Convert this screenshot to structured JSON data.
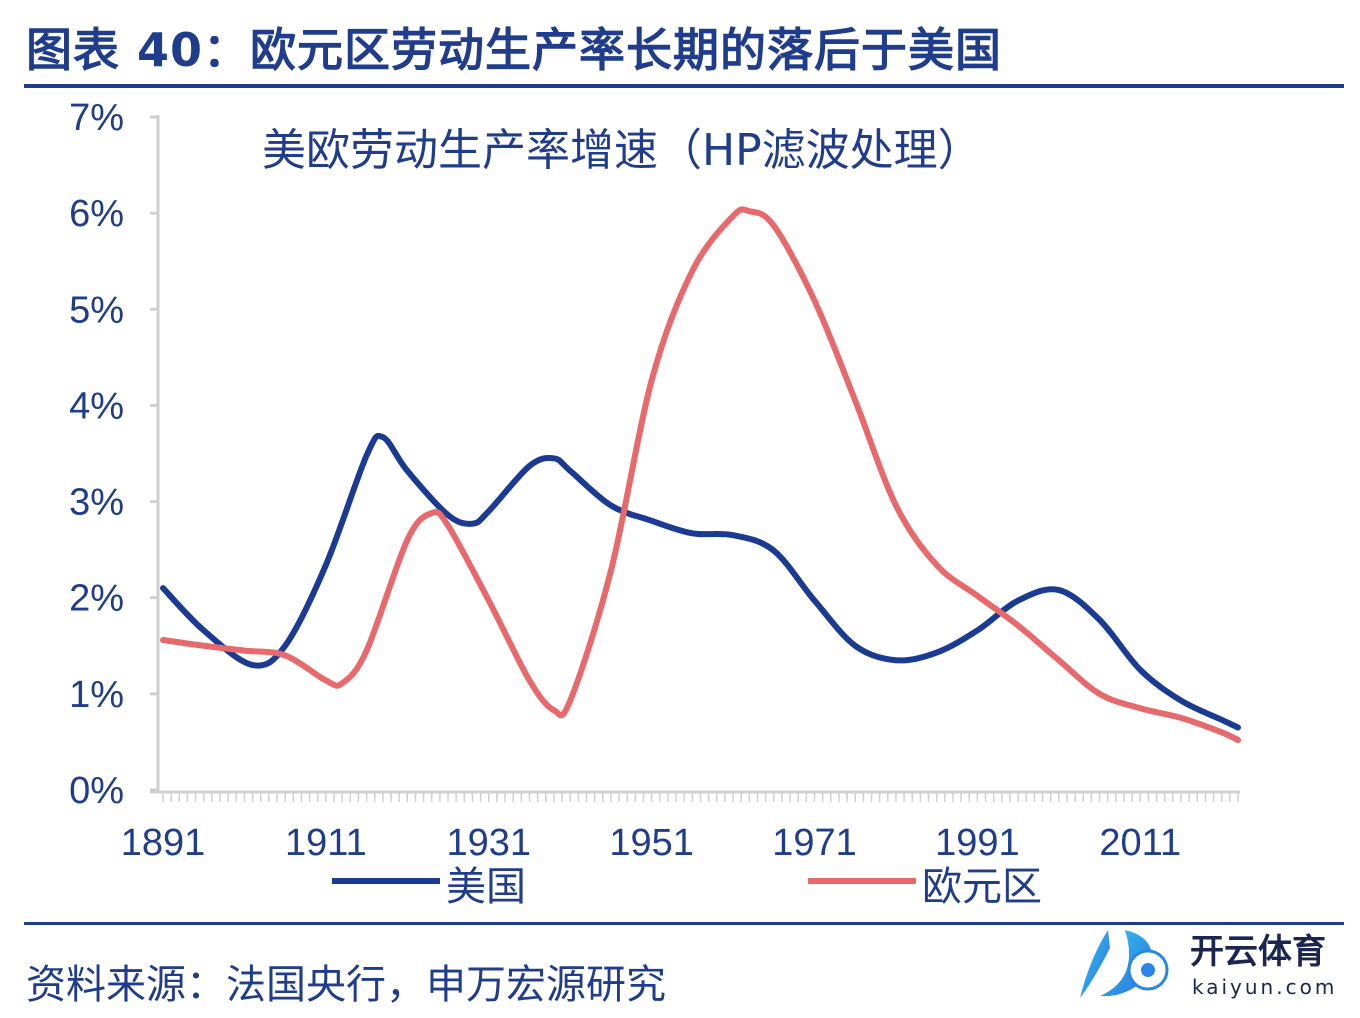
{
  "title": "图表 40：欧元区劳动生产率长期的落后于美国",
  "source": "资料来源：法国央行，申万宏源研究",
  "watermark": {
    "text_cn": "开云体育",
    "text_en": "kaiyun.com"
  },
  "colors": {
    "us": "#1a3a94",
    "eu": "#e8696b",
    "accent": "#1f3d8c"
  },
  "chart_data": {
    "type": "line",
    "title": "美欧劳动生产率增速（HP滤波处理）",
    "xlabel": "",
    "ylabel": "",
    "xlim": [
      1891,
      2023
    ],
    "ylim": [
      0,
      7
    ],
    "x_ticks": [
      1891,
      1911,
      1931,
      1951,
      1971,
      1991,
      2011
    ],
    "x_tick_labels": [
      "1891",
      "1911",
      "1931",
      "1951",
      "1971",
      "1991",
      "2011"
    ],
    "y_ticks": [
      0,
      1,
      2,
      3,
      4,
      5,
      6,
      7
    ],
    "y_tick_labels": [
      "0%",
      "1%",
      "2%",
      "3%",
      "4%",
      "5%",
      "6%",
      "7%"
    ],
    "legend_position": "bottom",
    "grid": false,
    "series": [
      {
        "name": "美国",
        "color_key": "us",
        "x": [
          1891,
          1896,
          1902,
          1906,
          1911,
          1916,
          1918,
          1921,
          1926,
          1929,
          1931,
          1936,
          1939,
          1941,
          1946,
          1951,
          1956,
          1961,
          1966,
          1971,
          1976,
          1981,
          1986,
          1991,
          1996,
          2001,
          2006,
          2011,
          2016,
          2021,
          2023
        ],
        "values": [
          2.1,
          1.66,
          1.3,
          1.5,
          2.34,
          3.48,
          3.67,
          3.32,
          2.86,
          2.77,
          2.9,
          3.37,
          3.45,
          3.32,
          2.96,
          2.8,
          2.67,
          2.65,
          2.49,
          1.97,
          1.5,
          1.35,
          1.43,
          1.66,
          1.97,
          2.08,
          1.77,
          1.25,
          0.93,
          0.73,
          0.65
        ]
      },
      {
        "name": "欧元区",
        "color_key": "eu",
        "x": [
          1891,
          1896,
          1901,
          1906,
          1911,
          1913,
          1916,
          1921,
          1924,
          1926,
          1931,
          1936,
          1939,
          1941,
          1946,
          1951,
          1956,
          1961,
          1963,
          1966,
          1971,
          1976,
          1981,
          1986,
          1991,
          1996,
          2001,
          2006,
          2011,
          2016,
          2021,
          2023
        ],
        "values": [
          1.56,
          1.5,
          1.45,
          1.4,
          1.14,
          1.11,
          1.45,
          2.6,
          2.88,
          2.75,
          1.97,
          1.14,
          0.83,
          0.93,
          2.28,
          4.26,
          5.4,
          5.97,
          6.02,
          5.87,
          5.09,
          4.05,
          2.96,
          2.34,
          2.02,
          1.71,
          1.35,
          1.0,
          0.85,
          0.75,
          0.6,
          0.52
        ]
      }
    ]
  }
}
